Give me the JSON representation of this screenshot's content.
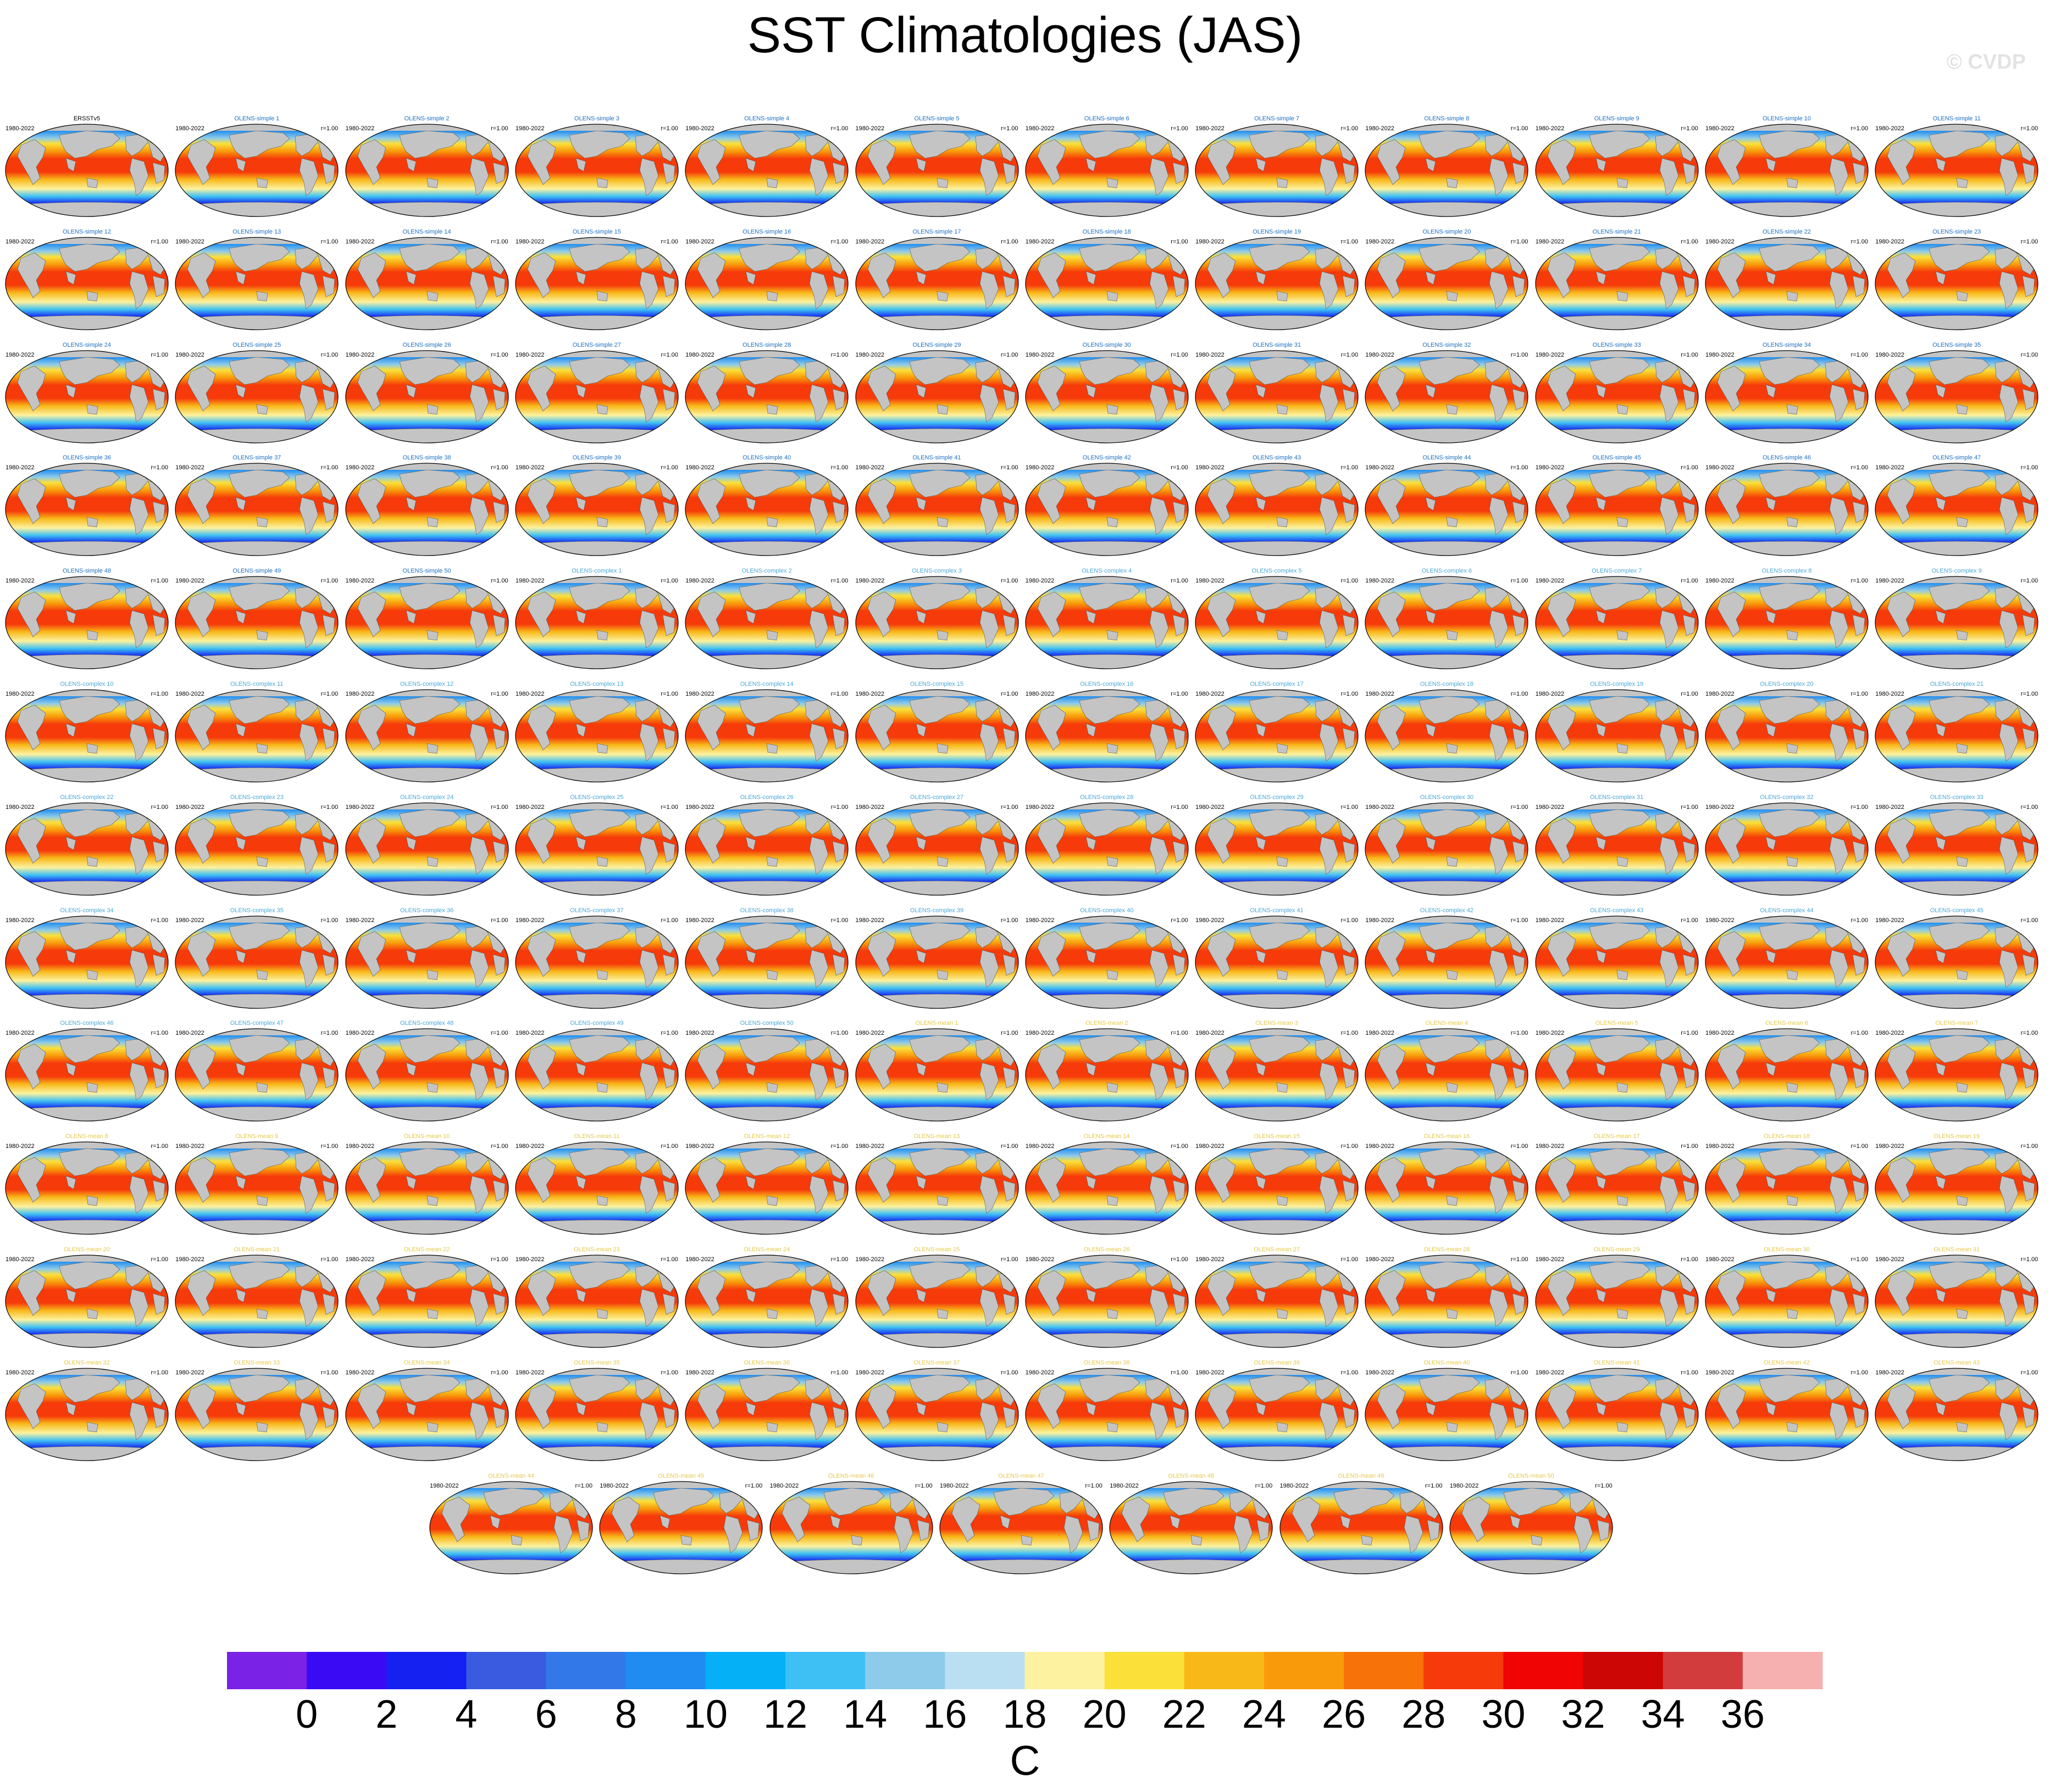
{
  "title": "SST Climatologies (JAS)",
  "watermark": "© CVDP",
  "chart_data": {
    "type": "heatmap",
    "title": "SST Climatologies (JAS)",
    "panel_period": "1980-2022",
    "panel_stat": "r=1.00",
    "panels": [
      "ERSSTv5",
      "OLENS-simple 1",
      "OLENS-simple 2",
      "OLENS-simple 3",
      "OLENS-simple 4",
      "OLENS-simple 5",
      "OLENS-simple 6",
      "OLENS-simple 7",
      "OLENS-simple 8",
      "OLENS-simple 9",
      "OLENS-simple 10",
      "OLENS-simple 11",
      "OLENS-simple 12",
      "OLENS-simple 13",
      "OLENS-simple 14",
      "OLENS-simple 15",
      "OLENS-simple 16",
      "OLENS-simple 17",
      "OLENS-simple 18",
      "OLENS-simple 19",
      "OLENS-simple 20",
      "OLENS-simple 21",
      "OLENS-simple 22",
      "OLENS-simple 23",
      "OLENS-simple 24",
      "OLENS-simple 25",
      "OLENS-simple 26",
      "OLENS-simple 27",
      "OLENS-simple 28",
      "OLENS-simple 29",
      "OLENS-simple 30",
      "OLENS-simple 31",
      "OLENS-simple 32",
      "OLENS-simple 33",
      "OLENS-simple 34",
      "OLENS-simple 35",
      "OLENS-simple 36",
      "OLENS-simple 37",
      "OLENS-simple 38",
      "OLENS-simple 39",
      "OLENS-simple 40",
      "OLENS-simple 41",
      "OLENS-simple 42",
      "OLENS-simple 43",
      "OLENS-simple 44",
      "OLENS-simple 45",
      "OLENS-simple 46",
      "OLENS-simple 47",
      "OLENS-simple 48",
      "OLENS-simple 49",
      "OLENS-simple 50",
      "OLENS-complex 1",
      "OLENS-complex 2",
      "OLENS-complex 3",
      "OLENS-complex 4",
      "OLENS-complex 5",
      "OLENS-complex 6",
      "OLENS-complex 7",
      "OLENS-complex 8",
      "OLENS-complex 9",
      "OLENS-complex 10",
      "OLENS-complex 11",
      "OLENS-complex 12",
      "OLENS-complex 13",
      "OLENS-complex 14",
      "OLENS-complex 15",
      "OLENS-complex 16",
      "OLENS-complex 17",
      "OLENS-complex 18",
      "OLENS-complex 19",
      "OLENS-complex 20",
      "OLENS-complex 21",
      "OLENS-complex 22",
      "OLENS-complex 23",
      "OLENS-complex 24",
      "OLENS-complex 25",
      "OLENS-complex 26",
      "OLENS-complex 27",
      "OLENS-complex 28",
      "OLENS-complex 29",
      "OLENS-complex 30",
      "OLENS-complex 31",
      "OLENS-complex 32",
      "OLENS-complex 33",
      "OLENS-complex 34",
      "OLENS-complex 35",
      "OLENS-complex 36",
      "OLENS-complex 37",
      "OLENS-complex 38",
      "OLENS-complex 39",
      "OLENS-complex 40",
      "OLENS-complex 41",
      "OLENS-complex 42",
      "OLENS-complex 43",
      "OLENS-complex 44",
      "OLENS-complex 45",
      "OLENS-complex 46",
      "OLENS-complex 47",
      "OLENS-complex 48",
      "OLENS-complex 49",
      "OLENS-complex 50",
      "OLENS-mean 1",
      "OLENS-mean 2",
      "OLENS-mean 3",
      "OLENS-mean 4",
      "OLENS-mean 5",
      "OLENS-mean 6",
      "OLENS-mean 7",
      "OLENS-mean 8",
      "OLENS-mean 9",
      "OLENS-mean 10",
      "OLENS-mean 11",
      "OLENS-mean 12",
      "OLENS-mean 13",
      "OLENS-mean 14",
      "OLENS-mean 15",
      "OLENS-mean 16",
      "OLENS-mean 17",
      "OLENS-mean 18",
      "OLENS-mean 19",
      "OLENS-mean 20",
      "OLENS-mean 21",
      "OLENS-mean 22",
      "OLENS-mean 23",
      "OLENS-mean 24",
      "OLENS-mean 25",
      "OLENS-mean 26",
      "OLENS-mean 27",
      "OLENS-mean 28",
      "OLENS-mean 29",
      "OLENS-mean 30",
      "OLENS-mean 31",
      "OLENS-mean 32",
      "OLENS-mean 33",
      "OLENS-mean 34",
      "OLENS-mean 35",
      "OLENS-mean 36",
      "OLENS-mean 37",
      "OLENS-mean 38",
      "OLENS-mean 39",
      "OLENS-mean 40",
      "OLENS-mean 41",
      "OLENS-mean 42",
      "OLENS-mean 43",
      "OLENS-mean 44",
      "OLENS-mean 45",
      "OLENS-mean 46",
      "OLENS-mean 47",
      "OLENS-mean 48",
      "OLENS-mean 49",
      "OLENS-mean 50"
    ],
    "colorbar": {
      "unit": "C",
      "ticks": [
        0,
        2,
        4,
        6,
        8,
        10,
        12,
        14,
        16,
        18,
        20,
        22,
        24,
        26,
        28,
        30,
        32,
        34,
        36
      ],
      "colors": [
        "#7a22e6",
        "#3a0af5",
        "#1421f0",
        "#3a5be0",
        "#3378e8",
        "#1e8cf0",
        "#06b0f7",
        "#3ec0f4",
        "#8ecbea",
        "#bbdff2",
        "#fcf2a0",
        "#fbe03a",
        "#f8b818",
        "#f89a0a",
        "#f77208",
        "#f63a0a",
        "#f00404",
        "#cc0604",
        "#d23c3c",
        "#f6b0b0"
      ]
    },
    "title_colors": {
      "obs": "#000000",
      "simple": "#1e6fbf",
      "complex": "#4aa8d8",
      "mean": "#e6c84a"
    }
  }
}
